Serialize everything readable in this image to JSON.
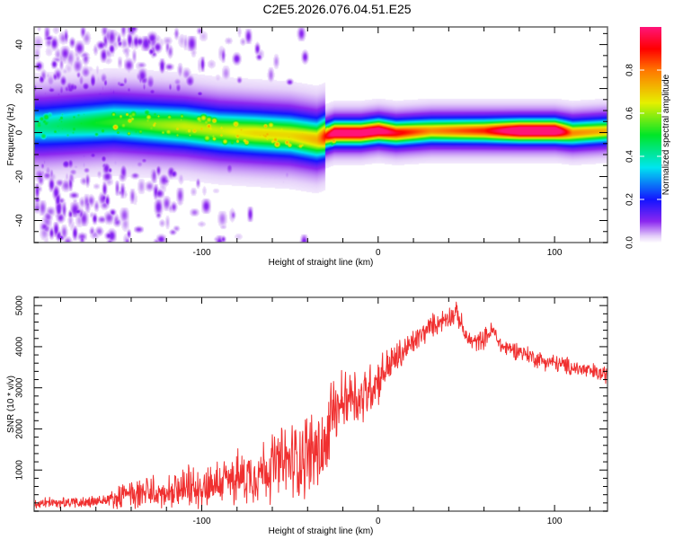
{
  "title": "C2E5.2026.076.04.51.E25",
  "chart_data": [
    {
      "type": "heatmap",
      "name": "spectrogram",
      "xlabel": "Height of straight line (km)",
      "ylabel": "Frequency (Hz)",
      "xlim": [
        -195,
        130
      ],
      "ylim": [
        -50,
        48
      ],
      "x_ticks": [
        -100,
        0,
        100
      ],
      "x_minor_step": 20,
      "y_ticks": [
        -40,
        -20,
        0,
        20,
        40
      ],
      "y_minor_step": 5,
      "colorbar": {
        "label": "Normalized spectral amplitude",
        "range": [
          0.0,
          1.0
        ],
        "ticks": [
          "0.0",
          "0.2",
          "0.4",
          "0.6",
          "0.8"
        ],
        "tick_values": [
          0.0,
          0.2,
          0.4,
          0.6,
          0.8
        ],
        "colormap": "rainbow (white-violet-blue-cyan-green-yellow-red-magenta)"
      },
      "ridge": {
        "x": [
          -190,
          -170,
          -150,
          -130,
          -110,
          -90,
          -70,
          -50,
          -35,
          -25,
          -10,
          0,
          10,
          30,
          60,
          80,
          100,
          110,
          130
        ],
        "center_hz": [
          3,
          4,
          5,
          4,
          3,
          1,
          0,
          -1,
          -3,
          0,
          0,
          1,
          0,
          1,
          1,
          1,
          1,
          0,
          1
        ],
        "amplitude": [
          0.25,
          0.3,
          0.35,
          0.4,
          0.45,
          0.45,
          0.5,
          0.5,
          0.55,
          0.9,
          0.9,
          0.9,
          0.75,
          0.6,
          0.7,
          0.95,
          0.95,
          0.6,
          0.55
        ],
        "noise_level": [
          0.8,
          0.75,
          0.6,
          0.5,
          0.25,
          0.2,
          0.1,
          0.05,
          0.02,
          0,
          0,
          0,
          0,
          0,
          0,
          0,
          0,
          0,
          0
        ]
      }
    },
    {
      "type": "line",
      "name": "snr",
      "xlabel": "Height of straight line (km)",
      "ylabel": "SNR (10 * v/v)",
      "xlim": [
        -195,
        130
      ],
      "ylim": [
        0,
        5200
      ],
      "x_ticks": [
        -100,
        0,
        100
      ],
      "x_minor_step": 20,
      "y_ticks": [
        1000,
        2000,
        3000,
        4000,
        5000
      ],
      "y_minor_step": 200,
      "series": [
        {
          "name": "SNR",
          "color": "#f03030",
          "x": [
            -195,
            -180,
            -160,
            -150,
            -140,
            -130,
            -120,
            -110,
            -100,
            -90,
            -80,
            -70,
            -60,
            -50,
            -40,
            -30,
            -25,
            -20,
            -15,
            -10,
            -5,
            0,
            5,
            10,
            15,
            20,
            25,
            30,
            35,
            40,
            45,
            50,
            55,
            60,
            65,
            70,
            80,
            90,
            100,
            110,
            120,
            130
          ],
          "y": [
            180,
            200,
            230,
            300,
            420,
            450,
            380,
            520,
            600,
            700,
            800,
            900,
            1100,
            1200,
            1400,
            1500,
            2600,
            2700,
            2900,
            2700,
            3000,
            3200,
            3500,
            3700,
            3900,
            4100,
            4300,
            4500,
            4600,
            4750,
            4800,
            4200,
            4100,
            4200,
            4400,
            4000,
            3900,
            3700,
            3600,
            3500,
            3400,
            3300
          ],
          "noise_amp": [
            120,
            130,
            150,
            200,
            350,
            400,
            350,
            450,
            500,
            550,
            600,
            650,
            800,
            900,
            1000,
            1100,
            800,
            700,
            750,
            700,
            650,
            550,
            450,
            400,
            350,
            300,
            280,
            260,
            250,
            250,
            250,
            220,
            220,
            220,
            220,
            200,
            200,
            200,
            200,
            200,
            200,
            200
          ]
        }
      ]
    }
  ]
}
